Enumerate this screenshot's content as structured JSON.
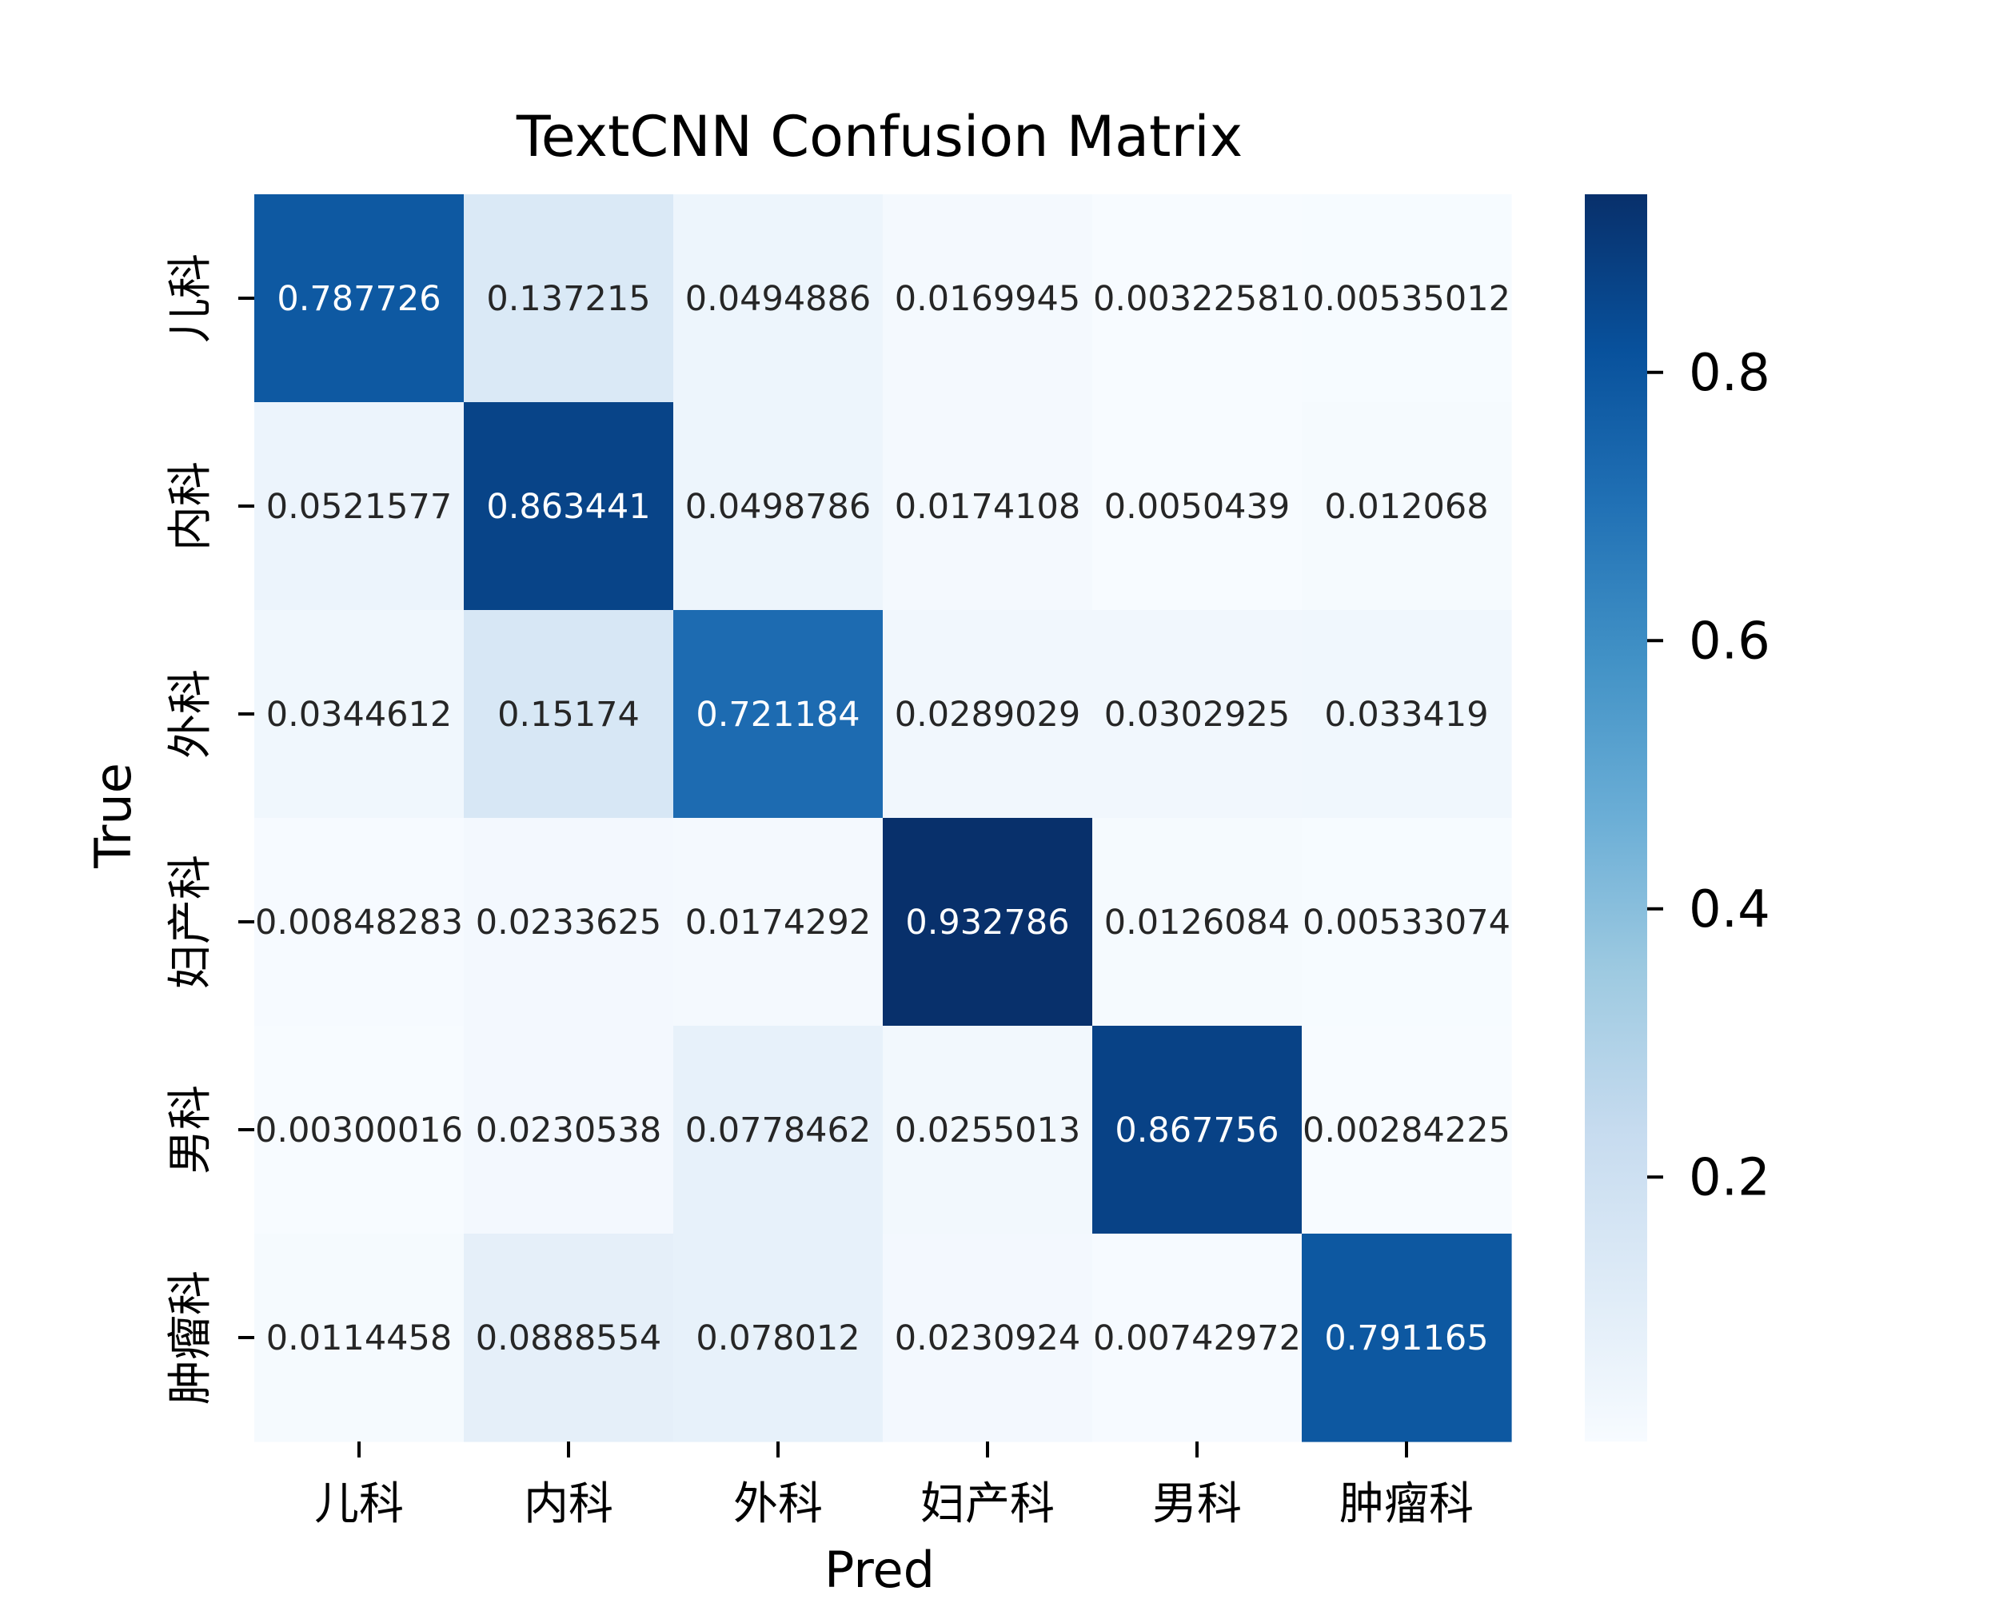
{
  "chart_data": {
    "type": "heatmap",
    "title": "TextCNN Confusion Matrix",
    "xlabel": "Pred",
    "ylabel": "True",
    "x_categories": [
      "儿科",
      "内科",
      "外科",
      "妇产科",
      "男科",
      "肿瘤科"
    ],
    "y_categories": [
      "儿科",
      "内科",
      "外科",
      "妇产科",
      "男科",
      "肿瘤科"
    ],
    "values": [
      [
        0.787726,
        0.137215,
        0.0494886,
        0.0169945,
        0.00322581,
        0.00535012
      ],
      [
        0.0521577,
        0.863441,
        0.0498786,
        0.0174108,
        0.0050439,
        0.012068
      ],
      [
        0.0344612,
        0.15174,
        0.721184,
        0.0289029,
        0.0302925,
        0.033419
      ],
      [
        0.00848283,
        0.0233625,
        0.0174292,
        0.932786,
        0.0126084,
        0.00533074
      ],
      [
        0.00300016,
        0.0230538,
        0.0778462,
        0.0255013,
        0.867756,
        0.00284225
      ],
      [
        0.0114458,
        0.0888554,
        0.078012,
        0.0230924,
        0.00742972,
        0.791165
      ]
    ],
    "cell_labels": [
      [
        "0.787726",
        "0.137215",
        "0.0494886",
        "0.0169945",
        "0.00322581",
        "0.00535012"
      ],
      [
        "0.0521577",
        "0.863441",
        "0.0498786",
        "0.0174108",
        "0.0050439",
        "0.012068"
      ],
      [
        "0.0344612",
        "0.15174",
        "0.721184",
        "0.0289029",
        "0.0302925",
        "0.033419"
      ],
      [
        "0.00848283",
        "0.0233625",
        "0.0174292",
        "0.932786",
        "0.0126084",
        "0.00533074"
      ],
      [
        "0.00300016",
        "0.0230538",
        "0.0778462",
        "0.0255013",
        "0.867756",
        "0.00284225"
      ],
      [
        "0.0114458",
        "0.0888554",
        "0.078012",
        "0.0230924",
        "0.00742972",
        "0.791165"
      ]
    ],
    "colorbar": {
      "range": [
        0.00284225,
        0.932786
      ],
      "ticks": [
        0.2,
        0.4,
        0.6,
        0.8
      ],
      "tick_labels": [
        "0.2",
        "0.4",
        "0.6",
        "0.8"
      ],
      "colormap": "Blues"
    },
    "grid": false,
    "legend": "colorbar-right"
  }
}
